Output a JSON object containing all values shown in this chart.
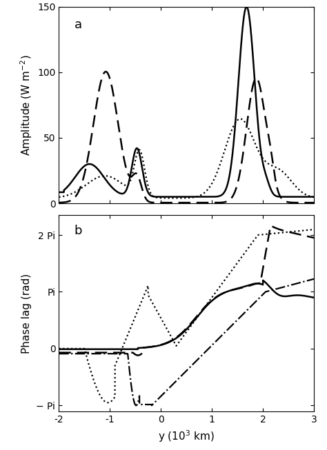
{
  "title_a": "a",
  "title_b": "b",
  "xlabel": "y (10$^{3}$ km)",
  "ylabel_a": "Amplitude (W m$^{-2}$)",
  "ylabel_b": "Phase lag (rad)",
  "xlim": [
    -2,
    3
  ],
  "ylim_a": [
    0,
    150
  ],
  "yticks_a": [
    0,
    50,
    100,
    150
  ],
  "xticks": [
    -2,
    -1,
    0,
    1,
    2,
    3
  ],
  "pi": 3.14159265358979,
  "background_color": "#ffffff",
  "figsize": [
    4.74,
    6.53
  ],
  "dpi": 100
}
